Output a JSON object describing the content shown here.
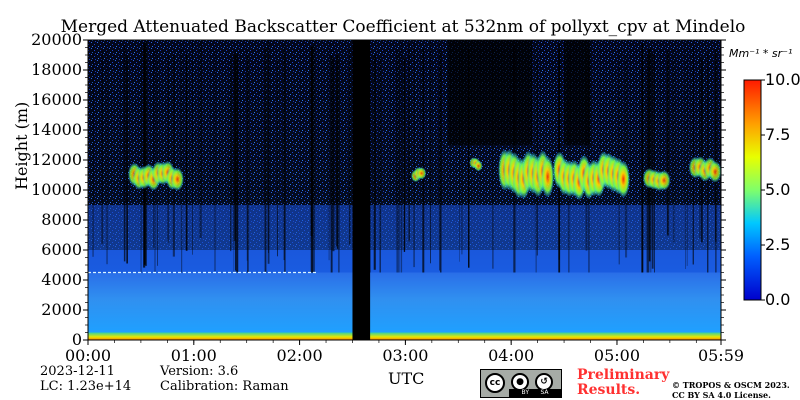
{
  "chart_data": {
    "type": "heatmap",
    "title": "Merged Attenuated Backscatter Coefficient at 532nm of pollyxt_cpv at Mindelo",
    "xlabel": "UTC",
    "ylabel": "Height (m)",
    "x_ticks": [
      "00:00",
      "01:00",
      "02:00",
      "03:00",
      "04:00",
      "05:00",
      "05:59"
    ],
    "y_ticks": [
      "0",
      "2000",
      "4000",
      "6000",
      "8000",
      "10000",
      "12000",
      "14000",
      "16000",
      "18000",
      "20000"
    ],
    "ylim": [
      0,
      20000
    ],
    "colorbar": {
      "units": "Mm⁻¹ * sr⁻¹",
      "ticks": [
        "0.0",
        "2.5",
        "5.0",
        "7.5",
        "10.0"
      ],
      "range": [
        0,
        10
      ],
      "colormap": "jet"
    },
    "no_data_gap_utc": [
      "02:30",
      "02:40"
    ],
    "cloud_layers": [
      {
        "start_utc": "00:25",
        "end_utc": "00:52",
        "base_m": 10200,
        "top_m": 11700,
        "peak_value": 7.5
      },
      {
        "start_utc": "03:05",
        "end_utc": "03:10",
        "base_m": 10600,
        "top_m": 11400,
        "peak_value": 6.0
      },
      {
        "start_utc": "03:38",
        "end_utc": "03:42",
        "base_m": 11400,
        "top_m": 12100,
        "peak_value": 5.5
      },
      {
        "start_utc": "03:55",
        "end_utc": "04:22",
        "base_m": 9600,
        "top_m": 12300,
        "peak_value": 9.0
      },
      {
        "start_utc": "04:26",
        "end_utc": "05:05",
        "base_m": 9800,
        "top_m": 12200,
        "peak_value": 10.0
      },
      {
        "start_utc": "05:17",
        "end_utc": "05:28",
        "base_m": 10200,
        "top_m": 11500,
        "peak_value": 7.0
      },
      {
        "start_utc": "05:43",
        "end_utc": "05:57",
        "base_m": 10700,
        "top_m": 12100,
        "peak_value": 6.5
      }
    ],
    "boundary_layer_top_m": 4500,
    "surface_layer_top_m": 500
  },
  "meta": {
    "date": "2023-12-11",
    "version": "Version: 3.6",
    "lc": "LC: 1.23e+14",
    "calibration": "Calibration: Raman"
  },
  "preliminary": [
    "Preliminary",
    "Results."
  ],
  "license": [
    "© TROPOS & OSCM 2023.",
    "CC BY SA 4.0 License."
  ],
  "cc_badge": {
    "cc": "cc",
    "by": "BY",
    "sa": "SA"
  },
  "colors": {
    "background_noise": "#000000",
    "aerosol": "#2a7de8",
    "cloud_peak": "#ff2a00"
  }
}
